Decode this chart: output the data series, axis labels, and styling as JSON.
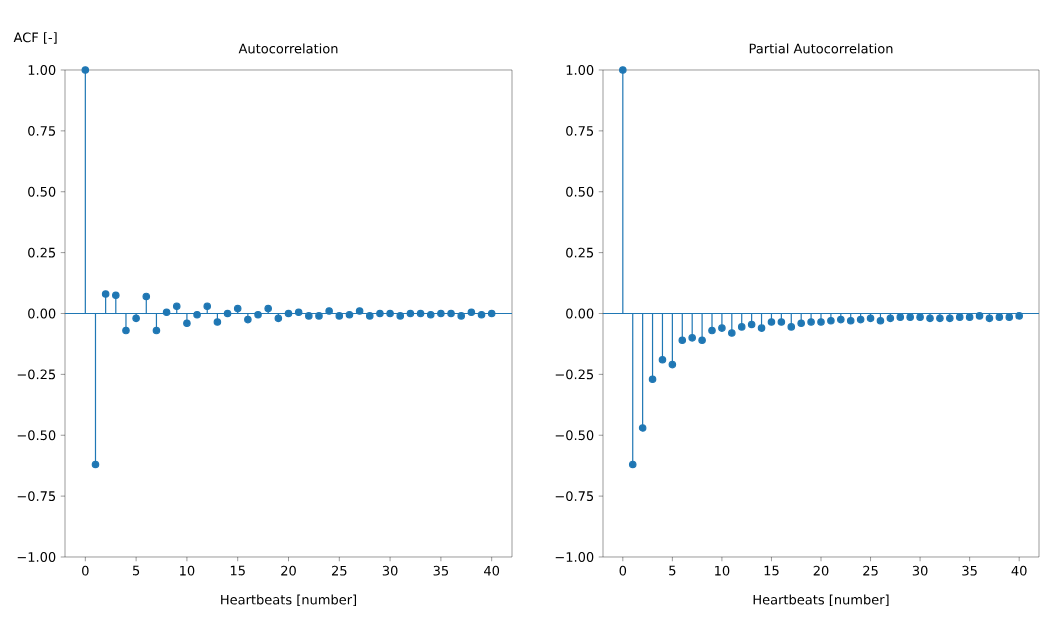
{
  "chart_data": [
    {
      "type": "lollipop",
      "title": "Autocorrelation",
      "ylabel": "ACF [-]",
      "xlabel": "Heartbeats [number]",
      "x": [
        0,
        1,
        2,
        3,
        4,
        5,
        6,
        7,
        8,
        9,
        10,
        11,
        12,
        13,
        14,
        15,
        16,
        17,
        18,
        19,
        20,
        21,
        22,
        23,
        24,
        25,
        26,
        27,
        28,
        29,
        30,
        31,
        32,
        33,
        34,
        35,
        36,
        37,
        38,
        39,
        40
      ],
      "series": [
        {
          "color": "#1f77b4",
          "values": [
            1.0,
            -0.62,
            0.08,
            0.075,
            -0.07,
            -0.02,
            0.07,
            -0.07,
            0.005,
            0.03,
            -0.04,
            -0.005,
            0.03,
            -0.035,
            0.0,
            0.02,
            -0.025,
            -0.005,
            0.02,
            -0.02,
            0.0,
            0.005,
            -0.01,
            -0.01,
            0.01,
            -0.01,
            -0.005,
            0.01,
            -0.01,
            0.0,
            0.0,
            -0.01,
            0.0,
            0.0,
            -0.005,
            0.0,
            0.0,
            -0.01,
            0.005,
            -0.005,
            0.0
          ]
        }
      ],
      "xlim": [
        -2,
        42
      ],
      "ylim": [
        -1,
        1
      ],
      "xticks": [
        0,
        5,
        10,
        15,
        20,
        25,
        30,
        35,
        40
      ],
      "yticks": [
        {
          "value": -1,
          "label": "−1.00"
        },
        {
          "value": -0.75,
          "label": "−0.75"
        },
        {
          "value": -0.5,
          "label": "−0.50"
        },
        {
          "value": -0.25,
          "label": "−0.25"
        },
        {
          "value": 0,
          "label": "0.00"
        },
        {
          "value": 0.25,
          "label": "0.25"
        },
        {
          "value": 0.5,
          "label": "0.50"
        },
        {
          "value": 0.75,
          "label": "0.75"
        },
        {
          "value": 1,
          "label": "1.00"
        }
      ],
      "ref_lines": [
        {
          "axis": "y",
          "value": 0,
          "color": "#1f77b4"
        }
      ],
      "marker": "circle"
    },
    {
      "type": "lollipop",
      "title": "Partial Autocorrelation",
      "xlabel": "Heartbeats [number]",
      "x": [
        0,
        1,
        2,
        3,
        4,
        5,
        6,
        7,
        8,
        9,
        10,
        11,
        12,
        13,
        14,
        15,
        16,
        17,
        18,
        19,
        20,
        21,
        22,
        23,
        24,
        25,
        26,
        27,
        28,
        29,
        30,
        31,
        32,
        33,
        34,
        35,
        36,
        37,
        38,
        39,
        40
      ],
      "series": [
        {
          "color": "#1f77b4",
          "values": [
            1.0,
            -0.62,
            -0.47,
            -0.27,
            -0.19,
            -0.21,
            -0.11,
            -0.1,
            -0.11,
            -0.07,
            -0.06,
            -0.08,
            -0.055,
            -0.045,
            -0.06,
            -0.035,
            -0.035,
            -0.055,
            -0.04,
            -0.035,
            -0.035,
            -0.03,
            -0.025,
            -0.03,
            -0.025,
            -0.02,
            -0.03,
            -0.02,
            -0.015,
            -0.015,
            -0.015,
            -0.02,
            -0.02,
            -0.02,
            -0.015,
            -0.015,
            -0.01,
            -0.02,
            -0.015,
            -0.015,
            -0.01
          ]
        }
      ],
      "xlim": [
        -2,
        42
      ],
      "ylim": [
        -1,
        1
      ],
      "xticks": [
        0,
        5,
        10,
        15,
        20,
        25,
        30,
        35,
        40
      ],
      "yticks": [
        {
          "value": -1,
          "label": "−1.00"
        },
        {
          "value": -0.75,
          "label": "−0.75"
        },
        {
          "value": -0.5,
          "label": "−0.50"
        },
        {
          "value": -0.25,
          "label": "−0.25"
        },
        {
          "value": 0,
          "label": "0.00"
        },
        {
          "value": 0.25,
          "label": "0.25"
        },
        {
          "value": 0.5,
          "label": "0.50"
        },
        {
          "value": 0.75,
          "label": "0.75"
        },
        {
          "value": 1,
          "label": "1.00"
        }
      ],
      "ref_lines": [
        {
          "axis": "y",
          "value": 0,
          "color": "#1f77b4"
        }
      ],
      "marker": "circle"
    }
  ]
}
